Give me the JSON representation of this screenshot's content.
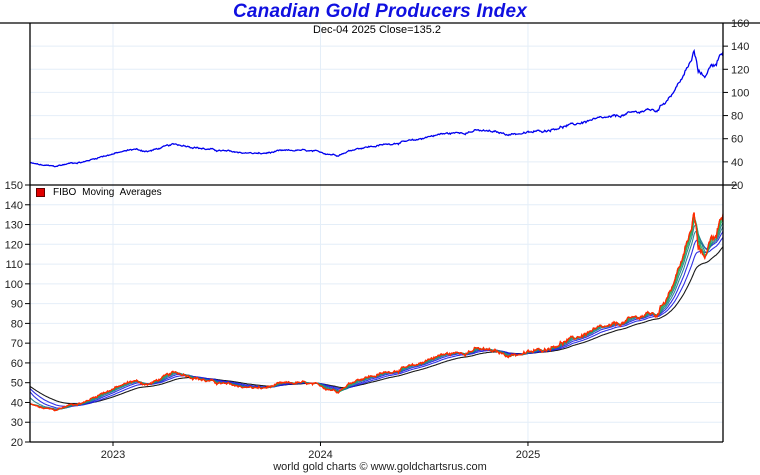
{
  "title": "Canadian Gold Producers Index",
  "subtitle": "Dec-04  2025   Close=135.2",
  "footer": "world gold charts © www.goldchartsrus.com",
  "colors": {
    "title": "#1010e0",
    "price": "#0000ee",
    "grid": "#e4eef8",
    "ma_fast": "#ff2a00",
    "ma_mid": "#22aa55",
    "ma_teal": "#1a7a8a",
    "ma_blue": "#1a1ae0",
    "ma_slow": "#000000"
  },
  "chart_data": [
    {
      "type": "line",
      "title": "Canadian Gold Producers Index",
      "subtitle": "Dec-04 2025 Close=135.2",
      "close": 135.2,
      "date": "Dec-04 2025",
      "xlabel": "",
      "ylabel": "",
      "x_range": [
        2022.6,
        2025.94
      ],
      "ylim": [
        20,
        160
      ],
      "y_ticks": [
        20,
        40,
        60,
        80,
        100,
        120,
        140,
        160
      ],
      "y_axis_side": "right",
      "x_ticks": [
        {
          "value": 2023,
          "label": "2023"
        },
        {
          "value": 2024,
          "label": "2024"
        },
        {
          "value": 2025,
          "label": "2025"
        }
      ],
      "grid": true,
      "series": [
        {
          "name": "Canadian Gold Producers Index",
          "anchors": [
            [
              2022.6,
              39
            ],
            [
              2022.66,
              37
            ],
            [
              2022.72,
              36
            ],
            [
              2022.8,
              39
            ],
            [
              2022.86,
              40
            ],
            [
              2022.95,
              45
            ],
            [
              2023.03,
              48
            ],
            [
              2023.1,
              51
            ],
            [
              2023.17,
              49
            ],
            [
              2023.25,
              53
            ],
            [
              2023.3,
              55
            ],
            [
              2023.36,
              54
            ],
            [
              2023.45,
              51
            ],
            [
              2023.55,
              49
            ],
            [
              2023.62,
              48
            ],
            [
              2023.72,
              47
            ],
            [
              2023.8,
              49
            ],
            [
              2023.9,
              50
            ],
            [
              2024.0,
              48
            ],
            [
              2024.08,
              46
            ],
            [
              2024.18,
              52
            ],
            [
              2024.28,
              54
            ],
            [
              2024.38,
              57
            ],
            [
              2024.45,
              58
            ],
            [
              2024.52,
              62
            ],
            [
              2024.58,
              64
            ],
            [
              2024.66,
              65
            ],
            [
              2024.75,
              67
            ],
            [
              2024.82,
              66
            ],
            [
              2024.9,
              64
            ],
            [
              2025.0,
              65
            ],
            [
              2025.08,
              67
            ],
            [
              2025.15,
              70
            ],
            [
              2025.22,
              72
            ],
            [
              2025.3,
              76
            ],
            [
              2025.4,
              78
            ],
            [
              2025.5,
              82
            ],
            [
              2025.58,
              85
            ],
            [
              2025.62,
              84
            ],
            [
              2025.66,
              92
            ],
            [
              2025.71,
              103
            ],
            [
              2025.76,
              118
            ],
            [
              2025.79,
              128
            ],
            [
              2025.8,
              136
            ],
            [
              2025.82,
              118
            ],
            [
              2025.85,
              114
            ],
            [
              2025.88,
              122
            ],
            [
              2025.91,
              126
            ],
            [
              2025.93,
              136
            ],
            [
              2025.94,
              135.2
            ]
          ]
        }
      ]
    },
    {
      "type": "line",
      "title": "FIBO Moving Averages",
      "legend": [
        "FIBO  Moving  Averages"
      ],
      "legend_position": "top-left",
      "ylim": [
        20,
        150
      ],
      "y_ticks": [
        20,
        30,
        40,
        50,
        60,
        70,
        80,
        90,
        100,
        110,
        120,
        130,
        140,
        150
      ],
      "y_axis_side": "left",
      "x_ticks": [
        {
          "value": 2023,
          "label": "2023"
        },
        {
          "value": 2024,
          "label": "2024"
        },
        {
          "value": 2025,
          "label": "2025"
        }
      ],
      "grid": true,
      "ma_periods": [
        3,
        5,
        8,
        13,
        21,
        34,
        55,
        89,
        144,
        233
      ],
      "ma_series_colors": [
        "ma_fast",
        "ma_fast",
        "ma_mid",
        "ma_mid",
        "ma_mid",
        "ma_teal",
        "ma_teal",
        "ma_blue",
        "ma_blue",
        "ma_slow"
      ],
      "ma_start_values": {
        "55": 43,
        "89": 46,
        "144": 47.5,
        "233": 48.5
      }
    }
  ]
}
